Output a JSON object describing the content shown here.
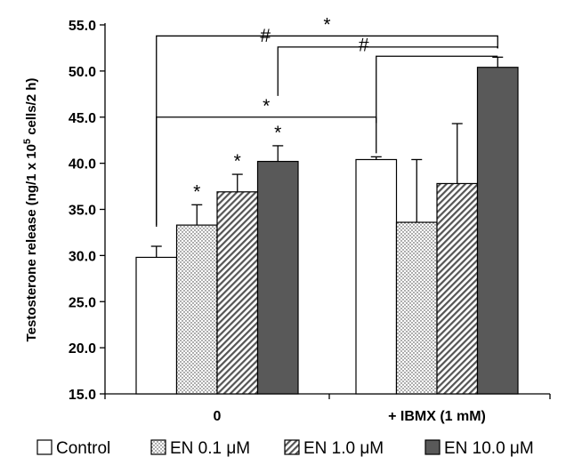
{
  "chart_data": {
    "type": "bar",
    "ylabel": "Testosterone release (ng/1 x 10 5 cells/2 h)",
    "ylabel_parts": {
      "pre": "Testosterone release (ng/1 x 10",
      "sup": "5",
      "post": " cells/2 h)"
    },
    "ylim": [
      15.0,
      55.0
    ],
    "yticks": [
      "15.0",
      "20.0",
      "25.0",
      "30.0",
      "35.0",
      "40.0",
      "45.0",
      "50.0",
      "55.0"
    ],
    "categories": [
      "0",
      "+ IBMX (1 mM)"
    ],
    "series": [
      {
        "name": "Control",
        "values": [
          29.8,
          40.4
        ],
        "errors": [
          1.2,
          0.3
        ],
        "fill": "white"
      },
      {
        "name": "EN 0.1 μM",
        "values": [
          33.3,
          33.6
        ],
        "errors": [
          2.2,
          6.8
        ],
        "fill": "dots"
      },
      {
        "name": "EN 1.0 μM",
        "values": [
          36.9,
          37.8
        ],
        "errors": [
          1.9,
          6.5
        ],
        "fill": "hatch"
      },
      {
        "name": "EN 10.0 μM",
        "values": [
          40.2,
          50.4
        ],
        "errors": [
          1.7,
          1.1
        ],
        "fill": "dark"
      }
    ],
    "annotations": [
      {
        "text": "*",
        "group": 0,
        "series": 1
      },
      {
        "text": "*",
        "group": 0,
        "series": 2
      },
      {
        "text": "*",
        "group": 0,
        "series": 3
      }
    ],
    "brackets": [
      {
        "text": "*",
        "from": [
          0,
          0
        ],
        "to": [
          1,
          3
        ]
      },
      {
        "text": "#",
        "from": [
          0,
          3
        ],
        "to": [
          1,
          3
        ]
      },
      {
        "text": "#",
        "from": [
          1,
          0
        ],
        "to": [
          1,
          3
        ]
      },
      {
        "text": "*",
        "from": [
          0,
          0
        ],
        "to": [
          1,
          0
        ]
      }
    ],
    "legend_position": "bottom",
    "grid": false,
    "colors": {
      "dark": "#595959",
      "stroke": "#000000"
    }
  }
}
